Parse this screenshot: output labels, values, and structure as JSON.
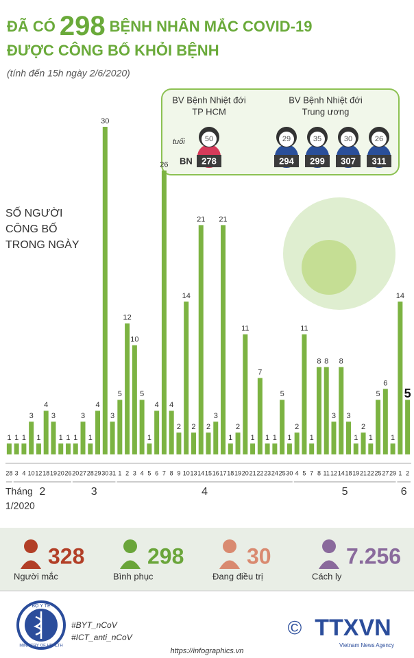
{
  "header": {
    "title_pre": "ĐÃ CÓ",
    "title_num": "298",
    "title_rest": "BỆNH NHÂN MẮC COVID-19",
    "title_line2": "ĐƯỢC CÔNG BỐ KHỎI BỆNH",
    "subtitle": "(tính đến 15h ngày 2/6/2020)"
  },
  "hospitals": [
    {
      "name": [
        "BV Bệnh Nhiệt đới",
        "TP HCM"
      ],
      "patients": [
        {
          "age": "50",
          "id": "278"
        }
      ]
    },
    {
      "name": [
        "BV Bệnh Nhiệt đới",
        "Trung ương"
      ],
      "patients": [
        {
          "age": "29",
          "id": "294"
        },
        {
          "age": "35",
          "id": "299"
        },
        {
          "age": "30",
          "id": "307"
        },
        {
          "age": "26",
          "id": "311"
        }
      ]
    }
  ],
  "age_hint": "tuổi",
  "id_hint": "BN",
  "chart_data": {
    "type": "bar",
    "ylabel": [
      "SỐ NGƯỜI",
      "CÔNG BỐ",
      "TRONG NGÀY"
    ],
    "categories": [
      "28",
      "3",
      "4",
      "10",
      "12",
      "18",
      "19",
      "20",
      "26",
      "20",
      "27",
      "28",
      "29",
      "30",
      "31",
      "1",
      "2",
      "3",
      "4",
      "5",
      "6",
      "7",
      "8",
      "9",
      "10",
      "13",
      "14",
      "15",
      "16",
      "17",
      "18",
      "19",
      "20",
      "21",
      "22",
      "23",
      "24",
      "25",
      "30",
      "4",
      "5",
      "7",
      "8",
      "11",
      "12",
      "14",
      "18",
      "19",
      "21",
      "22",
      "25",
      "27",
      "29",
      "1",
      "2"
    ],
    "values": [
      1,
      1,
      1,
      3,
      1,
      4,
      3,
      1,
      1,
      1,
      3,
      1,
      4,
      30,
      3,
      5,
      12,
      10,
      5,
      1,
      4,
      26,
      4,
      2,
      14,
      2,
      21,
      2,
      3,
      21,
      1,
      2,
      11,
      1,
      7,
      1,
      1,
      5,
      1,
      2,
      11,
      1,
      8,
      8,
      3,
      8,
      3,
      1,
      2,
      1,
      5,
      6,
      1,
      14,
      5
    ],
    "months": [
      "Tháng",
      "1/2020",
      "2",
      "3",
      "4",
      "5",
      "6"
    ],
    "color": "#7cb342",
    "ylim": [
      0,
      30
    ]
  },
  "stats": [
    {
      "value": "328",
      "label": "Người mắc",
      "color": "#b23f27"
    },
    {
      "value": "298",
      "label": "Bình phục",
      "color": "#6aa53a"
    },
    {
      "value": "30",
      "label": "Đang điều trị",
      "color": "#d98a70"
    },
    {
      "value": "7.256",
      "label": "Cách ly",
      "color": "#8a6a9c"
    }
  ],
  "footer": {
    "tags": [
      "#BYT_nCoV",
      "#ICT_anti_nCoV"
    ],
    "url": "https://infographics.vn",
    "ministry": "BỘ Y TẾ",
    "ministry_en": "MINISTRY OF HEALTH",
    "agency": "TTXVN",
    "agency_en": "Vietnam News Agency",
    "copyright": "©"
  }
}
